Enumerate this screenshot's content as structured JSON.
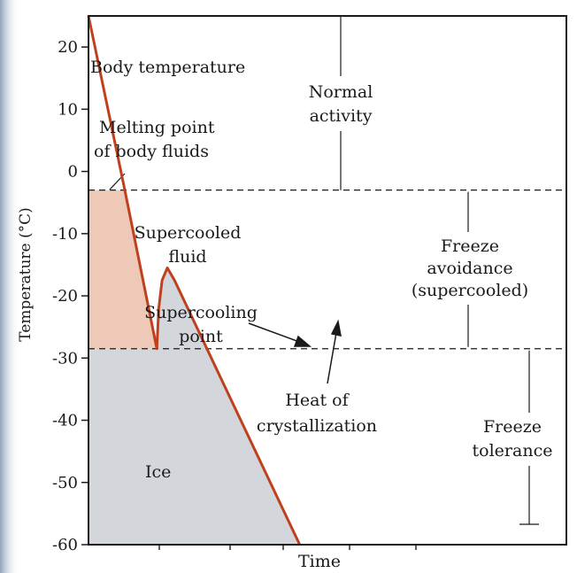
{
  "chart_data": {
    "type": "line",
    "xlabel": "Time",
    "ylabel": "Temperature (°C)",
    "ylim": [
      -60,
      25
    ],
    "yticks": [
      20,
      10,
      0,
      -10,
      -20,
      -30,
      -40,
      -50,
      -60
    ],
    "ytick_labels": [
      "20",
      "10",
      "0",
      "-10",
      "-20",
      "-30",
      "-40",
      "-50",
      "-60"
    ],
    "grid": false,
    "melting_point_c": -3,
    "supercooling_point_c": -28.5,
    "series": [
      {
        "name": "Body temperature",
        "color": "#c0401e",
        "points": [
          [
            0.0,
            25
          ],
          [
            0.076,
            -3
          ],
          [
            0.143,
            -28.5
          ],
          [
            0.147,
            -22
          ],
          [
            0.154,
            -17.5
          ],
          [
            0.165,
            -15.5
          ],
          [
            0.18,
            -17.5
          ],
          [
            0.442,
            -60
          ]
        ]
      }
    ],
    "regions": [
      {
        "name": "supercooled",
        "color": "#efc9b8"
      },
      {
        "name": "ice",
        "color": "#d3d6db"
      }
    ],
    "labels": {
      "body_temperature": "Body temperature",
      "melting_1": "Melting point",
      "melting_2": "of body fluids",
      "normal_1": "Normal",
      "normal_2": "activity",
      "supercooled_1": "Supercooled",
      "supercooled_2": "fluid",
      "scp_1": "Supercooling",
      "scp_2": "point",
      "avoid_1": "Freeze",
      "avoid_2": "avoidance",
      "avoid_3": "(supercooled)",
      "heat_1": "Heat of",
      "heat_2": "crystallization",
      "tol_1": "Freeze",
      "tol_2": "tolerance",
      "ice": "Ice"
    }
  }
}
